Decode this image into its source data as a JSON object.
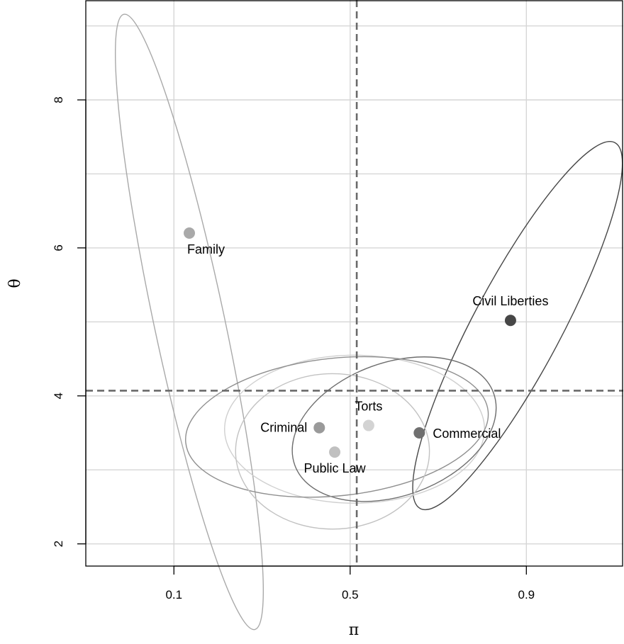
{
  "chart_data": {
    "type": "scatter",
    "xlabel": "π",
    "ylabel": "θ",
    "xlim": [
      -0.1,
      1.12
    ],
    "ylim": [
      1.7,
      9.35
    ],
    "x_ticks": [
      0.1,
      0.5,
      0.9
    ],
    "x_tick_labels": [
      "0.1",
      "0.5",
      "0.9"
    ],
    "x_grid": [
      0.1,
      0.5,
      0.9
    ],
    "y_ticks": [
      2,
      4,
      6,
      8
    ],
    "y_tick_labels": [
      "2",
      "4",
      "6",
      "8"
    ],
    "y_grid": [
      2,
      3,
      4,
      5,
      6,
      7,
      8,
      9
    ],
    "grid": true,
    "reference_lines": {
      "x": 0.515,
      "y": 4.07
    },
    "points": [
      {
        "label": "Family",
        "x": 0.135,
        "y": 6.2,
        "color": "#a9a9a9",
        "label_pos": "below-right",
        "ellipse": {
          "cx": 0.135,
          "cy": 5.0,
          "rx": 0.08,
          "ry": 4.25,
          "angle_deg": -12,
          "color": "#a9a9a9"
        }
      },
      {
        "label": "Civil Liberties",
        "x": 0.864,
        "y": 5.02,
        "color": "#474747",
        "label_pos": "above",
        "ellipse": {
          "cx": 0.88,
          "cy": 4.95,
          "rx": 0.1,
          "ry": 2.8,
          "angle_deg": 28,
          "color": "#474747"
        }
      },
      {
        "label": "Torts",
        "x": 0.542,
        "y": 3.6,
        "color": "#d3d3d3",
        "label_pos": "above",
        "ellipse": {
          "cx": 0.51,
          "cy": 3.55,
          "rx": 0.295,
          "ry": 1.0,
          "angle_deg": 0,
          "color": "#d0d0d0"
        }
      },
      {
        "label": "Commercial",
        "x": 0.657,
        "y": 3.5,
        "color": "#707070",
        "label_pos": "right",
        "ellipse": {
          "cx": 0.6,
          "cy": 3.55,
          "rx": 0.24,
          "ry": 0.9,
          "angle_deg": -20,
          "color": "#6e6e6e"
        }
      },
      {
        "label": "Criminal",
        "x": 0.43,
        "y": 3.57,
        "color": "#9a9a9a",
        "label_pos": "left",
        "ellipse": {
          "cx": 0.47,
          "cy": 3.58,
          "rx": 0.345,
          "ry": 0.93,
          "angle_deg": -6,
          "color": "#8f8f8f"
        }
      },
      {
        "label": "Public Law",
        "x": 0.465,
        "y": 3.24,
        "color": "#c0c0c0",
        "label_pos": "below",
        "ellipse": {
          "cx": 0.46,
          "cy": 3.25,
          "rx": 0.22,
          "ry": 1.05,
          "angle_deg": 0,
          "color": "#c2c2c2"
        }
      }
    ]
  }
}
